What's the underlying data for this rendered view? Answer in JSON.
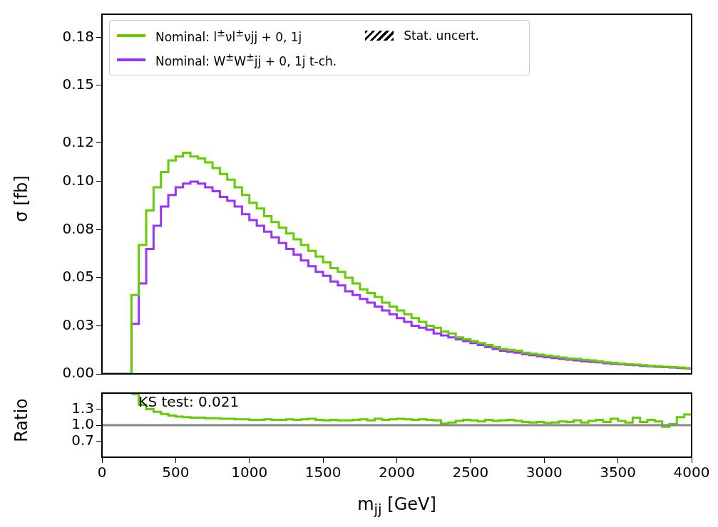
{
  "chart_data": [
    {
      "type": "histogram",
      "ylabel": "σ [fb]",
      "legend": "top left",
      "grid": false,
      "tick_labels": "y",
      "annotations": [
        "Stat. uncert."
      ],
      "xlim": [
        0,
        4000
      ],
      "xticks": [
        0,
        500,
        1000,
        1500,
        2000,
        2500,
        3000,
        3500,
        4000
      ],
      "ylim": [
        0,
        0.187
      ],
      "yticks": [
        {
          "value": 0,
          "label": "0.00"
        },
        {
          "value": 0.025,
          "label": "0.03"
        },
        0.05,
        {
          "value": 0.075,
          "label": "0.08"
        },
        {
          "value": 0.1,
          "label": "0.10"
        },
        0.12,
        0.15,
        {
          "value": 0.175,
          "label": "0.18"
        }
      ],
      "bins": [
        0,
        50,
        100,
        150,
        200,
        250,
        300,
        350,
        400,
        450,
        500,
        550,
        600,
        650,
        700,
        750,
        800,
        850,
        900,
        950,
        1000,
        1050,
        1100,
        1150,
        1200,
        1250,
        1300,
        1350,
        1400,
        1450,
        1500,
        1550,
        1600,
        1650,
        1700,
        1750,
        1800,
        1850,
        1900,
        1950,
        2000,
        2050,
        2100,
        2150,
        2200,
        2250,
        2300,
        2350,
        2400,
        2450,
        2500,
        2550,
        2600,
        2650,
        2700,
        2750,
        2800,
        2850,
        2900,
        2950,
        3000,
        3050,
        3100,
        3150,
        3200,
        3250,
        3300,
        3350,
        3400,
        3450,
        3500,
        3550,
        3600,
        3650,
        3700,
        3750,
        3800,
        3850,
        3900,
        3950,
        4000
      ],
      "series": [
        {
          "name": "Nominal: l$^{±}$νl$^{±}$νjj + 0, 1j",
          "color": "#66cc00",
          "values": [
            0,
            0,
            0,
            0,
            0.041,
            0.067,
            0.085,
            0.097,
            0.105,
            0.111,
            0.113,
            0.115,
            0.113,
            0.112,
            0.11,
            0.107,
            0.104,
            0.101,
            0.097,
            0.093,
            0.089,
            0.086,
            0.082,
            0.079,
            0.076,
            0.073,
            0.07,
            0.067,
            0.064,
            0.061,
            0.058,
            0.055,
            0.053,
            0.05,
            0.047,
            0.044,
            0.042,
            0.04,
            0.037,
            0.035,
            0.033,
            0.031,
            0.029,
            0.027,
            0.025,
            0.024,
            0.022,
            0.021,
            0.019,
            0.018,
            0.017,
            0.016,
            0.015,
            0.014,
            0.013,
            0.0125,
            0.012,
            0.011,
            0.0105,
            0.01,
            0.0095,
            0.009,
            0.0085,
            0.008,
            0.0078,
            0.0073,
            0.007,
            0.0065,
            0.006,
            0.0057,
            0.0053,
            0.005,
            0.0048,
            0.0045,
            0.0042,
            0.004,
            0.0037,
            0.0035,
            0.0033,
            0.003
          ]
        },
        {
          "name": "Nominal: W$^{±}$W$^{±}$jj + 0, 1j t-ch.",
          "color": "#9933ff",
          "values": [
            0,
            0,
            0,
            0,
            0.026,
            0.047,
            0.065,
            0.077,
            0.087,
            0.093,
            0.097,
            0.099,
            0.1,
            0.099,
            0.097,
            0.095,
            0.092,
            0.09,
            0.087,
            0.083,
            0.08,
            0.077,
            0.074,
            0.071,
            0.068,
            0.065,
            0.062,
            0.059,
            0.056,
            0.053,
            0.051,
            0.048,
            0.046,
            0.043,
            0.041,
            0.039,
            0.037,
            0.035,
            0.033,
            0.031,
            0.029,
            0.027,
            0.025,
            0.024,
            0.023,
            0.021,
            0.02,
            0.019,
            0.018,
            0.017,
            0.016,
            0.015,
            0.014,
            0.013,
            0.012,
            0.0115,
            0.011,
            0.0103,
            0.0097,
            0.0092,
            0.0087,
            0.0082,
            0.0078,
            0.0074,
            0.007,
            0.0066,
            0.0063,
            0.006,
            0.0056,
            0.0053,
            0.005,
            0.0047,
            0.0045,
            0.0042,
            0.004,
            0.0037,
            0.0035,
            0.0033,
            0.0031,
            0.0029
          ]
        }
      ]
    },
    {
      "type": "histogram",
      "ylabel": "Ratio",
      "xlabel": "m$_{jj}$ [GeV]",
      "grid": false,
      "annotations": [
        "KS test: 0.021"
      ],
      "xlim": [
        0,
        4000
      ],
      "xticks": [
        0,
        500,
        1000,
        1500,
        2000,
        2500,
        3000,
        3500,
        4000
      ],
      "ylim": [
        0.4,
        1.6
      ],
      "yticks": [
        0.7,
        {
          "value": 1,
          "label": "1.0"
        },
        1.3
      ],
      "ref_lines": [
        {
          "axis": "y",
          "value": 1,
          "color": "#888888"
        }
      ],
      "bins": [
        200,
        250,
        300,
        350,
        400,
        450,
        500,
        550,
        600,
        650,
        700,
        750,
        800,
        850,
        900,
        950,
        1000,
        1050,
        1100,
        1150,
        1200,
        1250,
        1300,
        1350,
        1400,
        1450,
        1500,
        1550,
        1600,
        1650,
        1700,
        1750,
        1800,
        1850,
        1900,
        1950,
        2000,
        2050,
        2100,
        2150,
        2200,
        2250,
        2300,
        2350,
        2400,
        2450,
        2500,
        2550,
        2600,
        2650,
        2700,
        2750,
        2800,
        2850,
        2900,
        2950,
        3000,
        3050,
        3100,
        3150,
        3200,
        3250,
        3300,
        3350,
        3400,
        3450,
        3500,
        3550,
        3600,
        3650,
        3700,
        3750,
        3800,
        3850,
        3900,
        3950,
        4000
      ],
      "series": [
        {
          "color": "#66cc00",
          "values": [
            1.58,
            1.38,
            1.3,
            1.25,
            1.21,
            1.18,
            1.16,
            1.15,
            1.14,
            1.14,
            1.13,
            1.13,
            1.12,
            1.12,
            1.11,
            1.11,
            1.1,
            1.1,
            1.11,
            1.1,
            1.1,
            1.11,
            1.1,
            1.11,
            1.12,
            1.1,
            1.09,
            1.1,
            1.09,
            1.09,
            1.1,
            1.11,
            1.09,
            1.12,
            1.1,
            1.11,
            1.12,
            1.11,
            1.1,
            1.11,
            1.1,
            1.09,
            1.03,
            1.05,
            1.08,
            1.1,
            1.09,
            1.07,
            1.1,
            1.08,
            1.09,
            1.1,
            1.08,
            1.06,
            1.05,
            1.06,
            1.04,
            1.05,
            1.07,
            1.06,
            1.09,
            1.05,
            1.08,
            1.1,
            1.06,
            1.12,
            1.08,
            1.05,
            1.14,
            1.06,
            1.1,
            1.07,
            0.97,
            1.02,
            1.15,
            1.2
          ]
        }
      ]
    }
  ]
}
